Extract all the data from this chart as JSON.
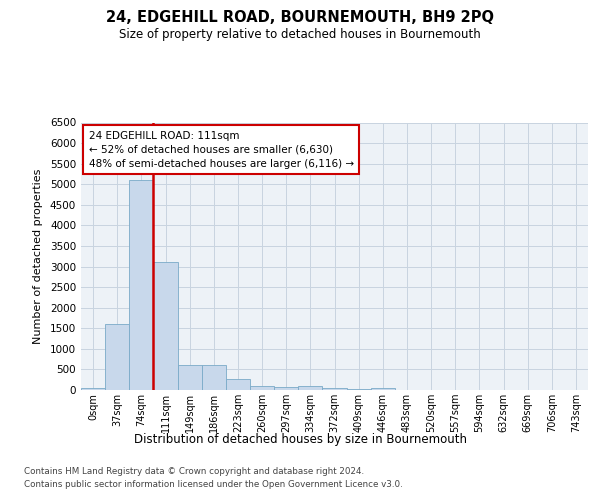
{
  "title": "24, EDGEHILL ROAD, BOURNEMOUTH, BH9 2PQ",
  "subtitle": "Size of property relative to detached houses in Bournemouth",
  "xlabel": "Distribution of detached houses by size in Bournemouth",
  "ylabel": "Number of detached properties",
  "footnote1": "Contains HM Land Registry data © Crown copyright and database right 2024.",
  "footnote2": "Contains public sector information licensed under the Open Government Licence v3.0.",
  "annotation_line1": "24 EDGEHILL ROAD: 111sqm",
  "annotation_line2": "← 52% of detached houses are smaller (6,630)",
  "annotation_line3": "48% of semi-detached houses are larger (6,116) →",
  "bar_color": "#c8d8eb",
  "bar_edge_color": "#7aaac8",
  "vline_color": "#cc0000",
  "grid_color": "#c8d4e0",
  "categories": [
    "0sqm",
    "37sqm",
    "74sqm",
    "111sqm",
    "149sqm",
    "186sqm",
    "223sqm",
    "260sqm",
    "297sqm",
    "334sqm",
    "372sqm",
    "409sqm",
    "446sqm",
    "483sqm",
    "520sqm",
    "557sqm",
    "594sqm",
    "632sqm",
    "669sqm",
    "706sqm",
    "743sqm"
  ],
  "values": [
    50,
    1600,
    5100,
    3100,
    600,
    600,
    270,
    100,
    80,
    100,
    50,
    30,
    50,
    0,
    0,
    0,
    0,
    0,
    0,
    0,
    0
  ],
  "vline_x": 2.5,
  "ylim": [
    0,
    6500
  ],
  "yticks": [
    0,
    500,
    1000,
    1500,
    2000,
    2500,
    3000,
    3500,
    4000,
    4500,
    5000,
    5500,
    6000,
    6500
  ],
  "background_color": "#ffffff",
  "plot_bg_color": "#edf2f7"
}
